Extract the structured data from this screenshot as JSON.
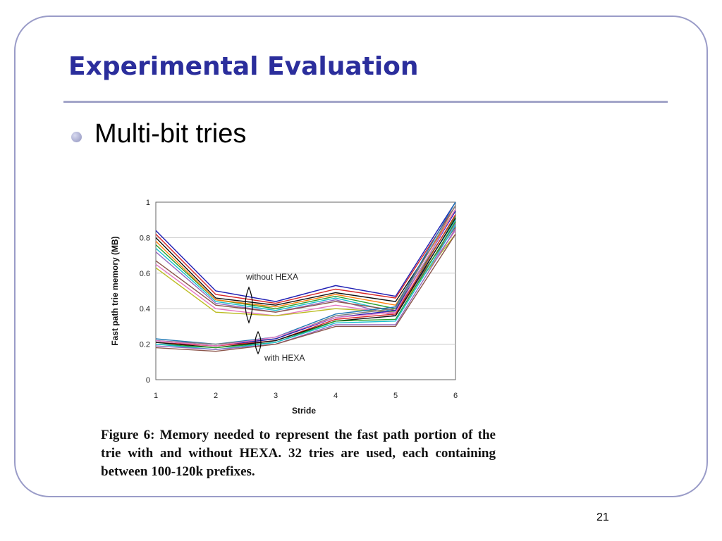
{
  "slide": {
    "title": "Experimental Evaluation",
    "bullet": "Multi-bit tries",
    "caption": "Figure 6: Memory needed to represent the fast path portion of the trie with and without HEXA. 32 tries are used, each containing between 100-120k prefixes.",
    "page_number": "21"
  },
  "colors": {
    "title": "#2b2e9c",
    "frame": "#9a9cc8",
    "rule": "#a3a5c9",
    "series_palette": [
      "#1f1fb4",
      "#d62728",
      "#111111",
      "#2ca02c",
      "#17becf",
      "#9467bd",
      "#8c564b",
      "#e377c2",
      "#bcbd22",
      "#ff7f0e",
      "#1f77b4",
      "#7f7f7f"
    ]
  },
  "chart_data": {
    "type": "line",
    "title": "",
    "xlabel": "Stride",
    "ylabel": "Fast path trie memory (MB)",
    "x": [
      1,
      2,
      3,
      4,
      5,
      6
    ],
    "xlim": [
      1,
      6
    ],
    "ylim": [
      0,
      1
    ],
    "x_ticks": [
      "1",
      "2",
      "3",
      "4",
      "5",
      "6"
    ],
    "y_ticks": [
      "0",
      "0.2",
      "0.4",
      "0.6",
      "0.8",
      "1"
    ],
    "grid": "horizontal",
    "legend": "none",
    "annotations": [
      "without HEXA",
      "with HEXA"
    ],
    "series_groups": [
      {
        "label": "without HEXA",
        "series": [
          {
            "values": [
              0.84,
              0.5,
              0.44,
              0.53,
              0.47,
              1.0
            ]
          },
          {
            "values": [
              0.82,
              0.48,
              0.43,
              0.51,
              0.46,
              0.98
            ]
          },
          {
            "values": [
              0.8,
              0.46,
              0.42,
              0.49,
              0.44,
              0.95
            ]
          },
          {
            "values": [
              0.76,
              0.45,
              0.4,
              0.47,
              0.4,
              0.92
            ]
          },
          {
            "values": [
              0.74,
              0.44,
              0.39,
              0.46,
              0.38,
              0.9
            ]
          },
          {
            "values": [
              0.72,
              0.43,
              0.38,
              0.45,
              0.36,
              0.88
            ]
          },
          {
            "values": [
              0.67,
              0.42,
              0.38,
              0.44,
              0.39,
              0.86
            ]
          },
          {
            "values": [
              0.65,
              0.4,
              0.36,
              0.42,
              0.37,
              0.84
            ]
          },
          {
            "values": [
              0.63,
              0.38,
              0.36,
              0.4,
              0.38,
              0.82
            ]
          },
          {
            "values": [
              0.78,
              0.45,
              0.41,
              0.48,
              0.42,
              0.96
            ]
          }
        ]
      },
      {
        "label": "with HEXA",
        "series": [
          {
            "values": [
              0.23,
              0.2,
              0.24,
              0.37,
              0.41,
              1.0
            ]
          },
          {
            "values": [
              0.22,
              0.2,
              0.23,
              0.36,
              0.4,
              0.98
            ]
          },
          {
            "values": [
              0.22,
              0.19,
              0.23,
              0.35,
              0.39,
              0.95
            ]
          },
          {
            "values": [
              0.21,
              0.19,
              0.22,
              0.34,
              0.37,
              0.93
            ]
          },
          {
            "values": [
              0.21,
              0.18,
              0.22,
              0.33,
              0.36,
              0.91
            ]
          },
          {
            "values": [
              0.2,
              0.18,
              0.21,
              0.33,
              0.34,
              0.89
            ]
          },
          {
            "values": [
              0.2,
              0.17,
              0.21,
              0.32,
              0.33,
              0.87
            ]
          },
          {
            "values": [
              0.19,
              0.17,
              0.2,
              0.31,
              0.31,
              0.85
            ]
          },
          {
            "values": [
              0.18,
              0.16,
              0.2,
              0.3,
              0.3,
              0.82
            ]
          },
          {
            "values": [
              0.22,
              0.19,
              0.24,
              0.35,
              0.38,
              0.96
            ]
          }
        ]
      }
    ]
  }
}
